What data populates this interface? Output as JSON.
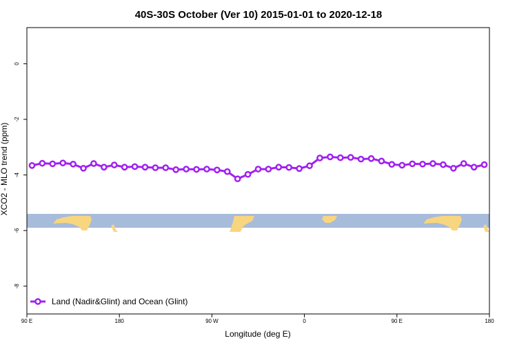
{
  "chart_data": {
    "type": "line",
    "title": "40S-30S October (Ver 10)   2015-01-01 to 2020-12-18",
    "xlabel": "Longitude (deg E)",
    "ylabel": "XCO2 - MLO trend (ppm)",
    "xlim": [
      90,
      540
    ],
    "ylim": [
      -9.0,
      1.3
    ],
    "x_ticks": [
      {
        "value": 90,
        "label": "90 E"
      },
      {
        "value": 180,
        "label": "180"
      },
      {
        "value": 270,
        "label": "90 W"
      },
      {
        "value": 360,
        "label": "0"
      },
      {
        "value": 450,
        "label": "90 E"
      },
      {
        "value": 540,
        "label": "180"
      }
    ],
    "y_ticks": [
      {
        "value": 0,
        "label": "0"
      },
      {
        "value": -2,
        "label": "-2"
      },
      {
        "value": -4,
        "label": "-4"
      },
      {
        "value": -6,
        "label": "-6"
      },
      {
        "value": -8,
        "label": "-8"
      }
    ],
    "legend": {
      "position": "bottom-left"
    },
    "series": [
      {
        "name": "Land (Nadir&Glint) and Ocean (Glint)",
        "color": "#a020f0",
        "x": [
          95,
          105,
          115,
          125,
          135,
          145,
          155,
          165,
          175,
          185,
          195,
          205,
          215,
          225,
          235,
          245,
          255,
          265,
          275,
          285,
          295,
          305,
          315,
          325,
          335,
          345,
          355,
          365,
          375,
          385,
          395,
          405,
          415,
          425,
          435,
          445,
          455,
          465,
          475,
          485,
          495,
          505,
          515,
          525,
          535
        ],
        "y": [
          -3.66,
          -3.58,
          -3.6,
          -3.57,
          -3.61,
          -3.76,
          -3.59,
          -3.72,
          -3.64,
          -3.72,
          -3.7,
          -3.72,
          -3.74,
          -3.74,
          -3.81,
          -3.79,
          -3.8,
          -3.79,
          -3.82,
          -3.88,
          -4.14,
          -3.98,
          -3.79,
          -3.79,
          -3.72,
          -3.73,
          -3.77,
          -3.67,
          -3.39,
          -3.35,
          -3.38,
          -3.37,
          -3.43,
          -3.41,
          -3.5,
          -3.62,
          -3.65,
          -3.6,
          -3.61,
          -3.59,
          -3.63,
          -3.76,
          -3.59,
          -3.72,
          -3.63
        ]
      }
    ],
    "map_strip": {
      "y_top": -5.4,
      "y_bottom": -5.9,
      "ocean_color": "#a7bbdb",
      "land_color": "#f8d57f"
    }
  }
}
